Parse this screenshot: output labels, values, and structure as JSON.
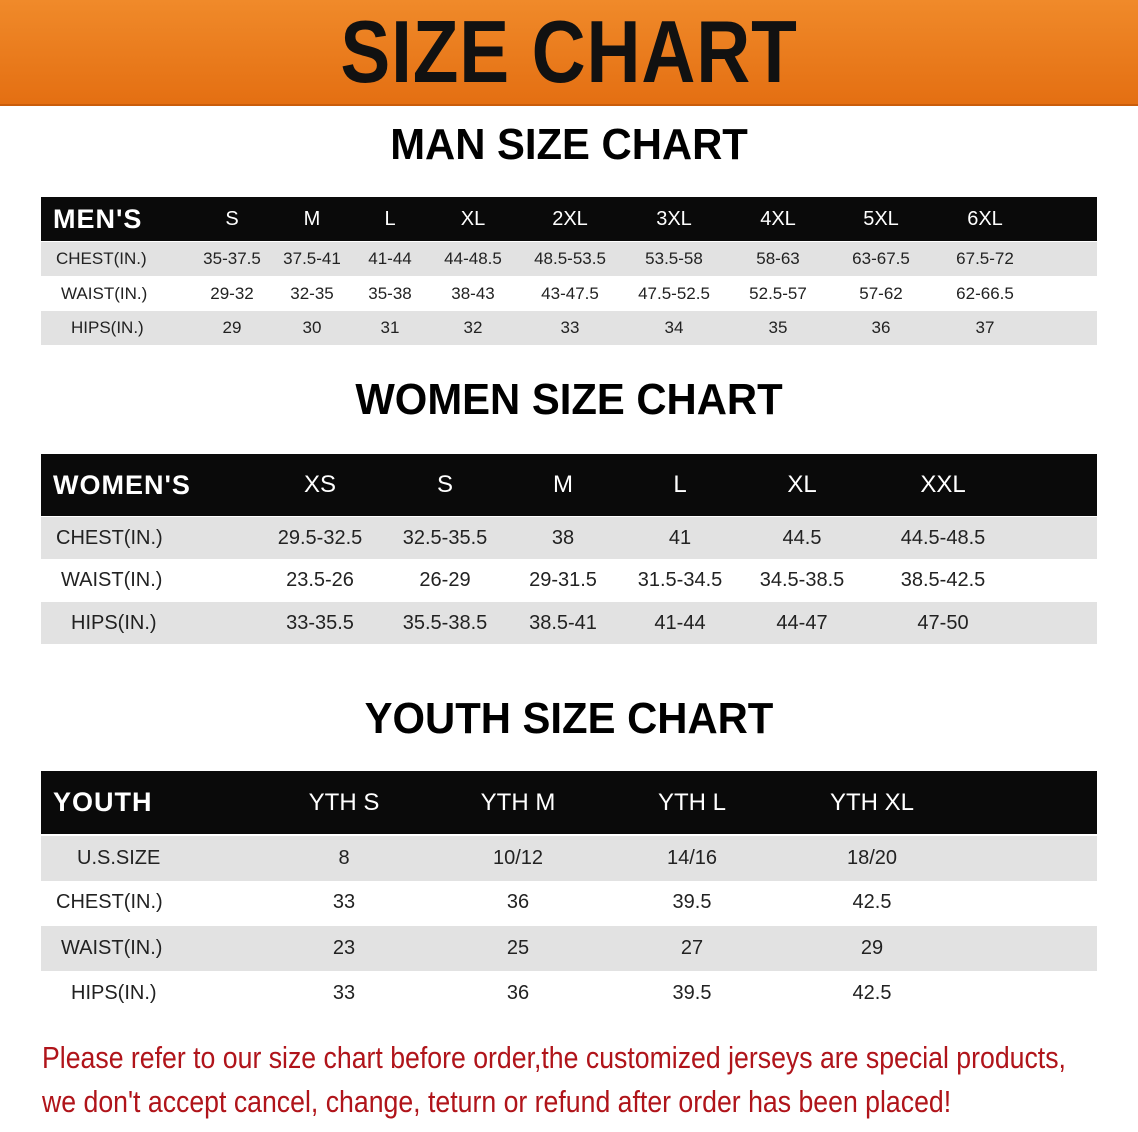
{
  "banner": {
    "title": "SIZE CHART",
    "color": "#e8761a"
  },
  "sections": [
    {
      "title": "MAN SIZE CHART",
      "header_label": "MEN'S",
      "sizes": [
        "S",
        "M",
        "L",
        "XL",
        "2XL",
        "3XL",
        "4XL",
        "5XL",
        "6XL"
      ],
      "rows": [
        {
          "label": "CHEST(IN.)",
          "values": [
            "35-37.5",
            "37.5-41",
            "41-44",
            "44-48.5",
            "48.5-53.5",
            "53.5-58",
            "58-63",
            "63-67.5",
            "67.5-72"
          ]
        },
        {
          "label": "WAIST(IN.)",
          "values": [
            "29-32",
            "32-35",
            "35-38",
            "38-43",
            "43-47.5",
            "47.5-52.5",
            "52.5-57",
            "57-62",
            "62-66.5"
          ]
        },
        {
          "label": "HIPS(IN.)",
          "values": [
            "29",
            "30",
            "31",
            "32",
            "33",
            "34",
            "35",
            "36",
            "37"
          ]
        }
      ]
    },
    {
      "title": "WOMEN SIZE CHART",
      "header_label": "WOMEN'S",
      "sizes": [
        "XS",
        "S",
        "M",
        "L",
        "XL",
        "XXL"
      ],
      "rows": [
        {
          "label": "CHEST(IN.)",
          "values": [
            "29.5-32.5",
            "32.5-35.5",
            "38",
            "41",
            "44.5",
            "44.5-48.5"
          ]
        },
        {
          "label": "WAIST(IN.)",
          "values": [
            "23.5-26",
            "26-29",
            "29-31.5",
            "31.5-34.5",
            "34.5-38.5",
            "38.5-42.5"
          ]
        },
        {
          "label": "HIPS(IN.)",
          "values": [
            "33-35.5",
            "35.5-38.5",
            "38.5-41",
            "41-44",
            "44-47",
            "47-50"
          ]
        }
      ]
    },
    {
      "title": "YOUTH SIZE CHART",
      "header_label": "YOUTH",
      "sizes": [
        "YTH S",
        "YTH M",
        "YTH L",
        "YTH XL"
      ],
      "rows": [
        {
          "label": "U.S.SIZE",
          "values": [
            "8",
            "10/12",
            "14/16",
            "18/20"
          ]
        },
        {
          "label": "CHEST(IN.)",
          "values": [
            "33",
            "36",
            "39.5",
            "42.5"
          ]
        },
        {
          "label": "WAIST(IN.)",
          "values": [
            "23",
            "25",
            "27",
            "29"
          ]
        },
        {
          "label": "HIPS(IN.)",
          "values": [
            "33",
            "36",
            "39.5",
            "42.5"
          ]
        }
      ]
    }
  ],
  "notice": {
    "line1": "Please refer to our size chart before order,the customized jerseys are special products,",
    "line2": "we don't accept cancel, change, teturn or refund after order has been placed!",
    "color": "#b0141a"
  }
}
